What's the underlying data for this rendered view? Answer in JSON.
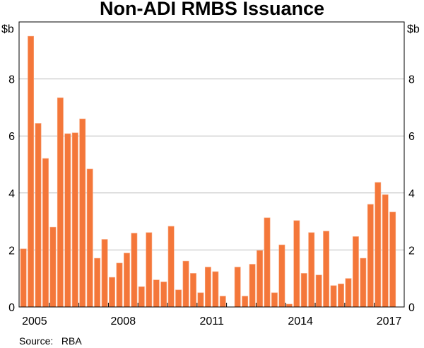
{
  "chart_data": {
    "type": "bar",
    "title": "Non-ADI RMBS Issuance",
    "ylabel_left": "$b",
    "ylabel_right": "$b",
    "ylim": [
      0,
      10
    ],
    "yticks": [
      0,
      2,
      4,
      6,
      8
    ],
    "grid": true,
    "frequency": "quarterly",
    "start": "2005 Q1",
    "end": "2017 Q3",
    "xtick_labels": [
      "2005",
      "2008",
      "2011",
      "2014",
      "2017"
    ],
    "year_range": [
      2005,
      2017
    ],
    "bar_color": "#f4773a",
    "values": [
      2.04,
      9.5,
      6.44,
      5.21,
      2.8,
      7.34,
      6.08,
      6.11,
      6.6,
      4.84,
      1.71,
      2.37,
      1.04,
      1.54,
      1.89,
      2.59,
      0.71,
      2.61,
      0.95,
      0.88,
      2.83,
      0.6,
      1.61,
      1.18,
      0.5,
      1.4,
      1.24,
      0.38,
      0,
      1.4,
      0.38,
      1.5,
      1.98,
      3.13,
      0.5,
      2.18,
      0.1,
      3.03,
      1.18,
      2.61,
      1.12,
      2.66,
      0.75,
      0.81,
      1.0,
      2.47,
      1.71,
      3.6,
      4.37,
      3.94,
      3.33
    ]
  },
  "source": "Source:   RBA"
}
